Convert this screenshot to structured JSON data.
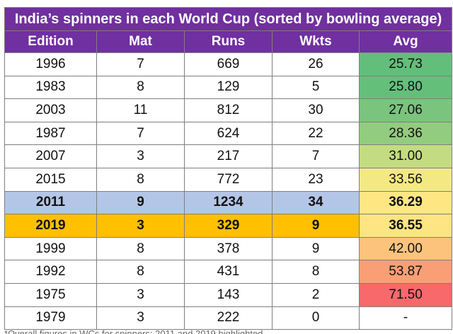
{
  "table": {
    "title": "India’s spinners in each World Cup (sorted by bowling average)",
    "columns": [
      "Edition",
      "Mat",
      "Runs",
      "Wkts",
      "Avg"
    ],
    "rows": [
      {
        "edition": "1996",
        "mat": "7",
        "runs": "669",
        "wkts": "26",
        "avg": "25.73",
        "avg_color": "#63be7b",
        "highlight": ""
      },
      {
        "edition": "1983",
        "mat": "8",
        "runs": "129",
        "wkts": "5",
        "avg": "25.80",
        "avg_color": "#64bf7b",
        "highlight": ""
      },
      {
        "edition": "2003",
        "mat": "11",
        "runs": "812",
        "wkts": "30",
        "avg": "27.06",
        "avg_color": "#7ac47d",
        "highlight": ""
      },
      {
        "edition": "1987",
        "mat": "7",
        "runs": "624",
        "wkts": "22",
        "avg": "28.36",
        "avg_color": "#92cc7e",
        "highlight": ""
      },
      {
        "edition": "2007",
        "mat": "3",
        "runs": "217",
        "wkts": "7",
        "avg": "31.00",
        "avg_color": "#c3dc81",
        "highlight": ""
      },
      {
        "edition": "2015",
        "mat": "8",
        "runs": "772",
        "wkts": "23",
        "avg": "33.56",
        "avg_color": "#f3e984",
        "highlight": ""
      },
      {
        "edition": "2011",
        "mat": "9",
        "runs": "1234",
        "wkts": "34",
        "avg": "36.29",
        "avg_color": "#fee783",
        "highlight": "blue"
      },
      {
        "edition": "2019",
        "mat": "3",
        "runs": "329",
        "wkts": "9",
        "avg": "36.55",
        "avg_color": "#fee482",
        "highlight": "gold"
      },
      {
        "edition": "1999",
        "mat": "8",
        "runs": "378",
        "wkts": "9",
        "avg": "42.00",
        "avg_color": "#fcc37c",
        "highlight": ""
      },
      {
        "edition": "1992",
        "mat": "8",
        "runs": "431",
        "wkts": "8",
        "avg": "53.87",
        "avg_color": "#fa9f75",
        "highlight": ""
      },
      {
        "edition": "1975",
        "mat": "3",
        "runs": "143",
        "wkts": "2",
        "avg": "71.50",
        "avg_color": "#f8696b",
        "highlight": ""
      },
      {
        "edition": "1979",
        "mat": "3",
        "runs": "222",
        "wkts": "0",
        "avg": "-",
        "avg_color": "#ffffff",
        "highlight": ""
      }
    ]
  },
  "footnote": "*Overall figures in WCs for spinners; 2011 and 2019 highlighted"
}
